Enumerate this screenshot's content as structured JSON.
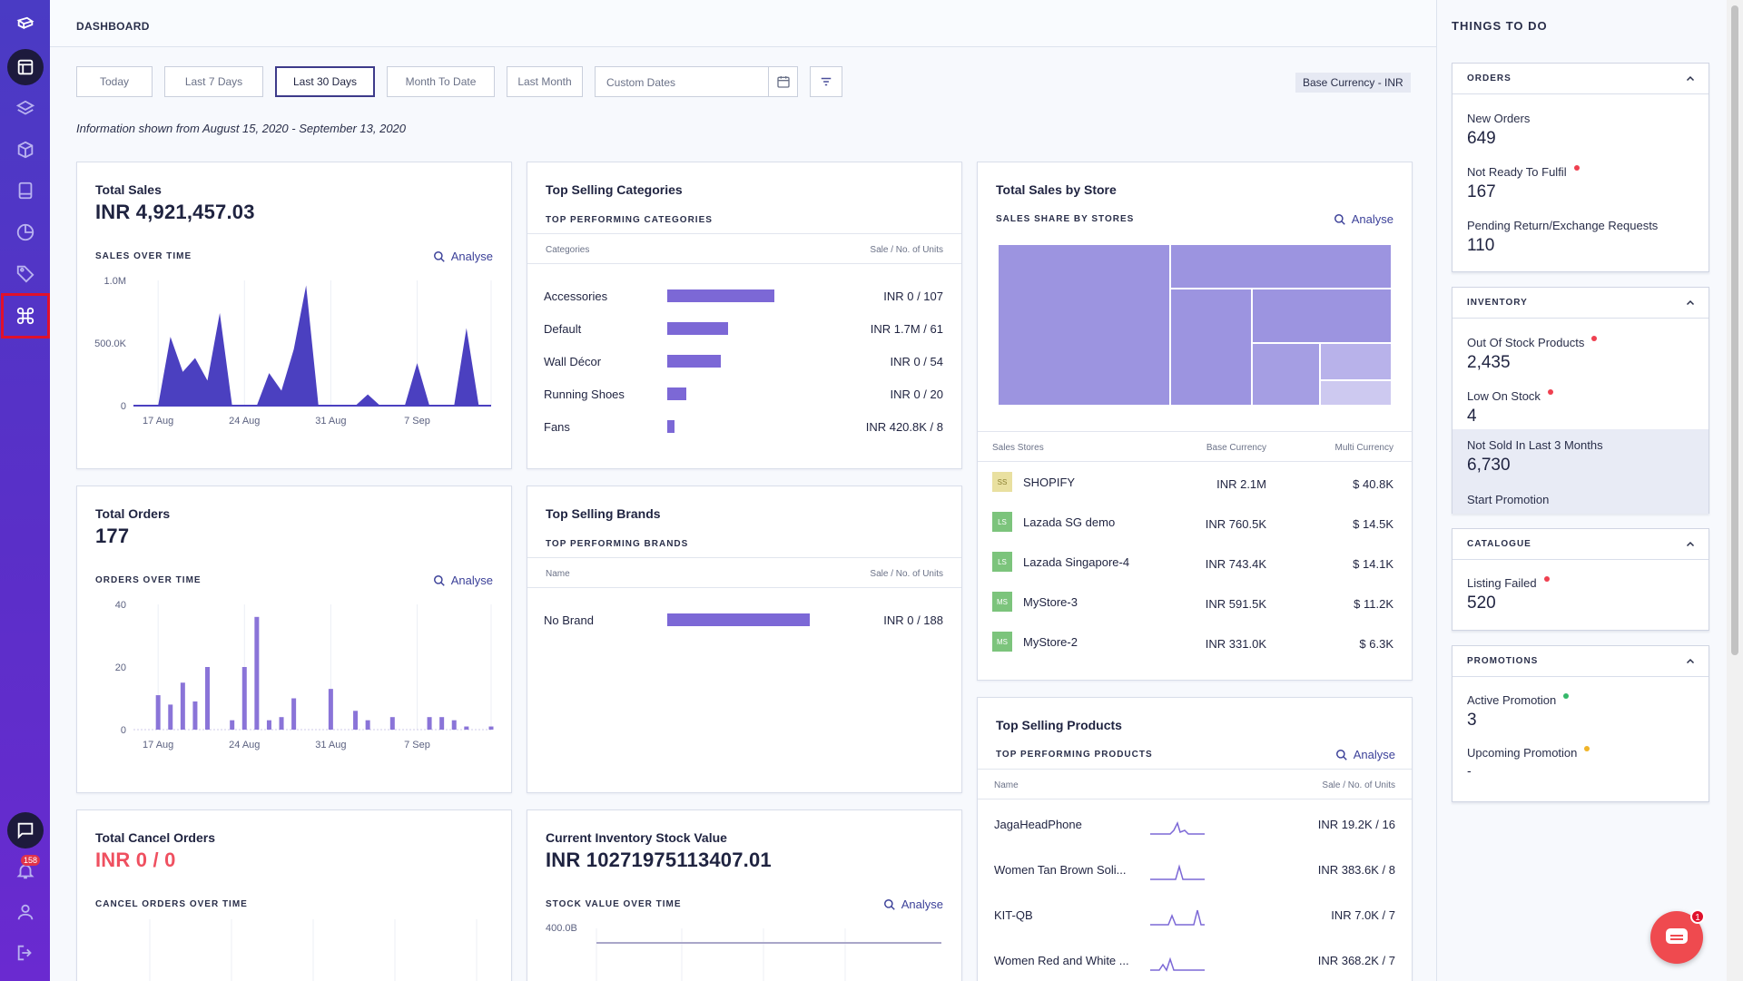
{
  "header": {
    "title": "DASHBOARD"
  },
  "filters": {
    "buttons": [
      "Today",
      "Last 7 Days",
      "Last 30 Days",
      "Month To Date",
      "Last Month"
    ],
    "active": "Last 30 Days",
    "custom_placeholder": "Custom Dates",
    "base_currency": "Base Currency - INR"
  },
  "info_text": "Information shown from August 15, 2020 - September 13, 2020",
  "analyse_label": "Analyse",
  "total_sales": {
    "title": "Total Sales",
    "value": "INR  4,921,457.03",
    "subtitle": "SALES OVER TIME",
    "y_ticks": [
      "1.0M",
      "500.0K",
      "0"
    ],
    "x_ticks": [
      "17 Aug",
      "24 Aug",
      "31 Aug",
      "7 Sep"
    ]
  },
  "total_orders": {
    "title": "Total Orders",
    "value": "177",
    "subtitle": "ORDERS OVER TIME",
    "y_ticks": [
      "40",
      "20",
      "0"
    ],
    "x_ticks": [
      "17 Aug",
      "24 Aug",
      "31 Aug",
      "7 Sep"
    ]
  },
  "total_cancel": {
    "title": "Total Cancel Orders",
    "value": "INR  0 / 0",
    "subtitle": "CANCEL ORDERS OVER TIME"
  },
  "top_categories": {
    "title": "Top Selling Categories",
    "subtitle": "TOP PERFORMING CATEGORIES",
    "col_name": "Categories",
    "col_value": "Sale / No. of Units",
    "rows": [
      {
        "name": "Accessories",
        "value": "INR 0 / 107"
      },
      {
        "name": "Default",
        "value": "INR 1.7M / 61"
      },
      {
        "name": "Wall Décor",
        "value": "INR 0 / 54"
      },
      {
        "name": "Running Shoes",
        "value": "INR 0 / 20"
      },
      {
        "name": "Fans",
        "value": "INR 420.8K / 8"
      }
    ]
  },
  "top_brands": {
    "title": "Top Selling Brands",
    "subtitle": "TOP PERFORMING BRANDS",
    "col_name": "Name",
    "col_value": "Sale / No. of Units",
    "rows": [
      {
        "name": "No Brand",
        "value": "INR 0 / 188"
      }
    ]
  },
  "inventory_value": {
    "title": "Current Inventory Stock Value",
    "value": "INR  10271975113407.01",
    "subtitle": "STOCK VALUE OVER TIME",
    "y_tick": "400.0B"
  },
  "sales_by_store": {
    "title": "Total Sales by Store",
    "subtitle": "SALES SHARE BY STORES",
    "col_store": "Sales Stores",
    "col_base": "Base Currency",
    "col_multi": "Multi Currency",
    "rows": [
      {
        "logo": "SS",
        "name": "SHOPIFY",
        "base": "INR 2.1M",
        "multi": "$ 40.8K",
        "color": "#e9e0a0"
      },
      {
        "logo": "LS",
        "name": "Lazada SG demo",
        "base": "INR 760.5K",
        "multi": "$ 14.5K",
        "color": "#7cc47c"
      },
      {
        "logo": "LS",
        "name": "Lazada Singapore-4",
        "base": "INR 743.4K",
        "multi": "$ 14.1K",
        "color": "#7cc47c"
      },
      {
        "logo": "MS",
        "name": "MyStore-3",
        "base": "INR 591.5K",
        "multi": "$ 11.2K",
        "color": "#7cc47c"
      },
      {
        "logo": "MS",
        "name": "MyStore-2",
        "base": "INR 331.0K",
        "multi": "$ 6.3K",
        "color": "#7cc47c"
      }
    ]
  },
  "top_products": {
    "title": "Top Selling Products",
    "subtitle": "TOP PERFORMING PRODUCTS",
    "col_name": "Name",
    "col_value": "Sale / No. of Units",
    "rows": [
      {
        "name": "JagaHeadPhone",
        "value": "INR 19.2K / 16"
      },
      {
        "name": "Women Tan Brown Soli...",
        "value": "INR 383.6K / 8"
      },
      {
        "name": "KIT-QB",
        "value": "INR 7.0K / 7"
      },
      {
        "name": "Women Red and White ...",
        "value": "INR 368.2K / 7"
      }
    ]
  },
  "things_to_do": {
    "title": "THINGS TO DO",
    "orders": {
      "head": "ORDERS",
      "new_label": "New Orders",
      "new_value": "649",
      "notready_label": "Not Ready To Fulfil",
      "notready_value": "167",
      "pending_label": "Pending Return/Exchange Requests",
      "pending_value": "110"
    },
    "inventory": {
      "head": "INVENTORY",
      "oos_label": "Out Of Stock Products",
      "oos_value": "2,435",
      "low_label": "Low On Stock",
      "low_value": "4",
      "notsold_label": "Not Sold In Last 3 Months",
      "notsold_value": "6,730",
      "promo_link": "Start Promotion"
    },
    "catalogue": {
      "head": "CATALOGUE",
      "failed_label": "Listing Failed",
      "failed_value": "520"
    },
    "promotions": {
      "head": "PROMOTIONS",
      "active_label": "Active Promotion",
      "active_value": "3",
      "upcoming_label": "Upcoming Promotion",
      "upcoming_value": "-"
    }
  },
  "notifications_count": "158",
  "chat_badge": "1",
  "chart_data": [
    {
      "type": "area",
      "title": "SALES OVER TIME",
      "x": [
        "15 Aug",
        "16 Aug",
        "17 Aug",
        "18 Aug",
        "19 Aug",
        "20 Aug",
        "21 Aug",
        "22 Aug",
        "23 Aug",
        "24 Aug",
        "25 Aug",
        "26 Aug",
        "27 Aug",
        "28 Aug",
        "29 Aug",
        "30 Aug",
        "31 Aug",
        "1 Sep",
        "2 Sep",
        "3 Sep",
        "4 Sep",
        "5 Sep",
        "6 Sep",
        "7 Sep",
        "8 Sep",
        "9 Sep",
        "10 Sep",
        "11 Sep",
        "12 Sep",
        "13 Sep"
      ],
      "values": [
        0,
        0,
        0,
        550000,
        270000,
        380000,
        200000,
        740000,
        0,
        0,
        0,
        260000,
        120000,
        450000,
        960000,
        0,
        0,
        0,
        0,
        90000,
        0,
        0,
        0,
        340000,
        0,
        0,
        0,
        620000,
        0,
        0
      ],
      "ylim": [
        0,
        1000000
      ]
    },
    {
      "type": "bar",
      "title": "ORDERS OVER TIME",
      "x": [
        "15 Aug",
        "16 Aug",
        "17 Aug",
        "18 Aug",
        "19 Aug",
        "20 Aug",
        "21 Aug",
        "22 Aug",
        "23 Aug",
        "24 Aug",
        "25 Aug",
        "26 Aug",
        "27 Aug",
        "28 Aug",
        "29 Aug",
        "30 Aug",
        "31 Aug",
        "1 Sep",
        "2 Sep",
        "3 Sep",
        "4 Sep",
        "5 Sep",
        "6 Sep",
        "7 Sep",
        "8 Sep",
        "9 Sep",
        "10 Sep",
        "11 Sep",
        "12 Sep",
        "13 Sep"
      ],
      "values": [
        0,
        0,
        11,
        8,
        15,
        9,
        20,
        0,
        3,
        20,
        36,
        3,
        4,
        10,
        0,
        0,
        13,
        0,
        6,
        3,
        0,
        4,
        0,
        0,
        4,
        4,
        3,
        1,
        0,
        1
      ],
      "ylim": [
        0,
        40
      ]
    }
  ]
}
